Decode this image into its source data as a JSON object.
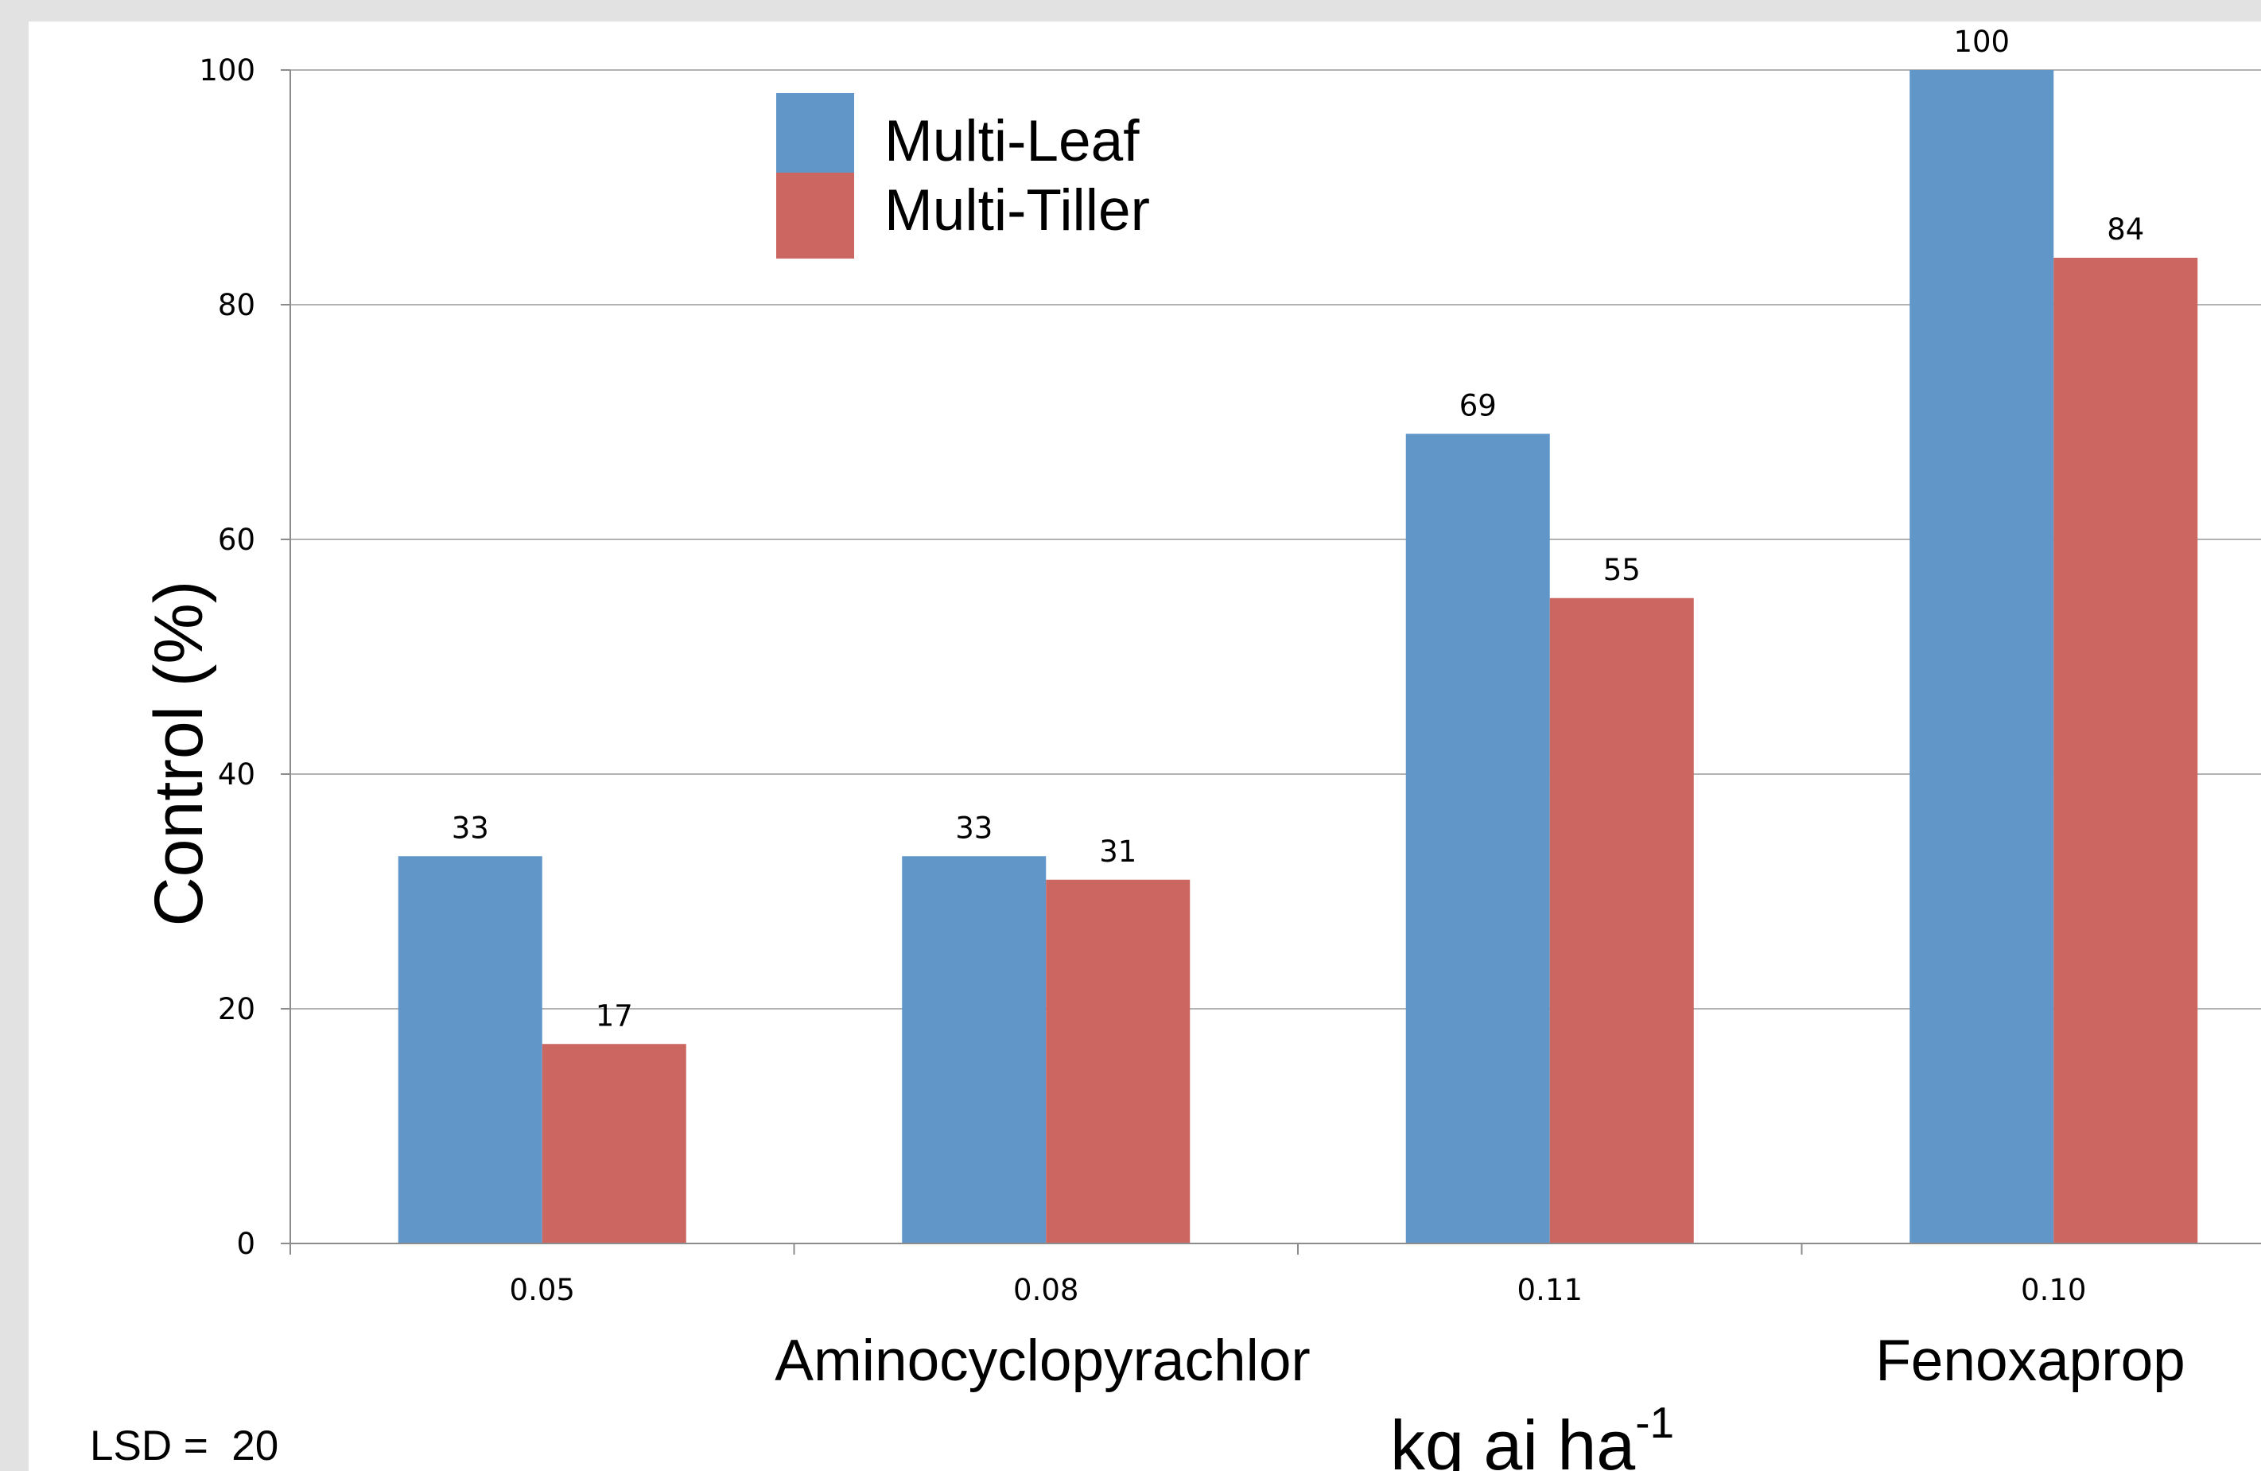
{
  "chart_data": {
    "type": "bar",
    "categories": [
      "0.05",
      "0.08",
      "0.11",
      "0.10"
    ],
    "series": [
      {
        "name": "Multi-Leaf",
        "values": [
          33,
          33,
          69,
          100
        ],
        "color": "#6196c9"
      },
      {
        "name": "Multi-Tiller",
        "values": [
          17,
          31,
          55,
          84
        ],
        "color": "#cc6660"
      }
    ],
    "data_labels": {
      "Multi-Leaf": [
        "33",
        "33",
        "69",
        "100"
      ],
      "Multi-Tiller": [
        "17",
        "31",
        "55",
        "84"
      ]
    },
    "groups": [
      {
        "label": "Aminocyclopyrachlor",
        "categories": [
          "0.05",
          "0.08",
          "0.11"
        ]
      },
      {
        "label": "Fenoxaprop",
        "categories": [
          "0.10"
        ]
      }
    ],
    "ylabel": "Control (%)",
    "xlabel": {
      "text": "kg ai ha",
      "superscript": "-1"
    },
    "ylim": [
      0,
      100
    ],
    "yticks": [
      0,
      20,
      40,
      60,
      80,
      100
    ],
    "grid": true,
    "legend_position": "top-left",
    "annotation": "LSD =  20"
  }
}
